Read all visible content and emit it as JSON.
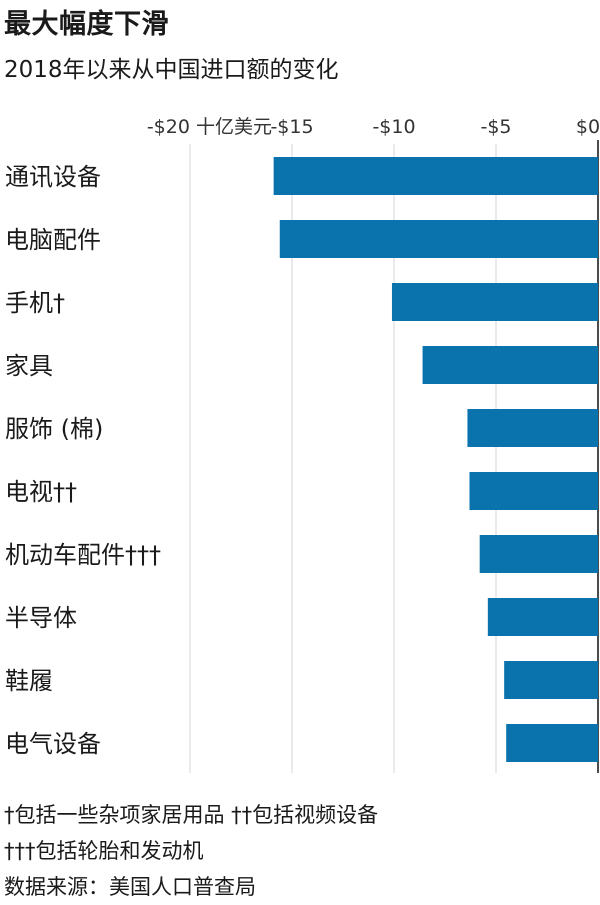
{
  "header": {
    "title": "最大幅度下滑",
    "subtitle": "2018年以来从中国进口额的变化"
  },
  "chart_data": {
    "type": "bar",
    "orientation": "horizontal",
    "xlim": [
      -20,
      0
    ],
    "x_tick_values": [
      -20,
      -15,
      -10,
      -5,
      0
    ],
    "x_tick_labels": [
      "-$20 十亿美元",
      "-$15",
      "-$10",
      "-$5",
      "$0"
    ],
    "grid": true,
    "bar_color": "#0a73ae",
    "categories": [
      "通讯设备",
      "电脑配件",
      "手机†",
      "家具",
      "服饰 (棉)",
      "电视††",
      "机动车配件†††",
      "半导体",
      "鞋履",
      "电气设备"
    ],
    "values": [
      -15.9,
      -15.6,
      -10.1,
      -8.6,
      -6.4,
      -6.3,
      -5.8,
      -5.4,
      -4.6,
      -4.5
    ]
  },
  "notes": {
    "line1": "†包括一些杂项家居用品 ††包括视频设备",
    "line2": "†††包括轮胎和发动机",
    "source": "数据来源：美国人口普查局"
  }
}
